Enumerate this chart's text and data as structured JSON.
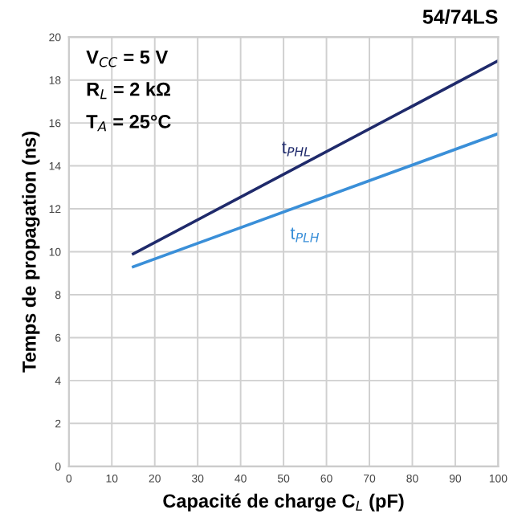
{
  "chart_data": {
    "type": "line",
    "title": "54/74LS",
    "xlabel": "Capacité de charge C$_{L}$ (pF)",
    "ylabel": "Temps de propagation (ns)",
    "annotations": [
      "V$_{CC}$ = 5 V",
      "R$_{L}$ = 2 kΩ",
      "T$_{A}$ = 25°C"
    ],
    "x": [
      15,
      100
    ],
    "series": [
      {
        "name": "t$_{PHL}$",
        "color": "#1f2a6b",
        "values": [
          9.9,
          18.9
        ]
      },
      {
        "name": "t$_{PLH}$",
        "color": "#3a8fd8",
        "values": [
          9.3,
          15.5
        ]
      }
    ],
    "xlim": [
      0,
      100
    ],
    "xticks": [
      0,
      10,
      20,
      30,
      40,
      50,
      60,
      70,
      80,
      90,
      100
    ],
    "ylim": [
      0,
      20
    ],
    "yticks": [
      0,
      2,
      4,
      6,
      8,
      10,
      12,
      14,
      16,
      18,
      20
    ],
    "grid": true,
    "legend": false,
    "marker": "none",
    "line_style": "solid"
  }
}
